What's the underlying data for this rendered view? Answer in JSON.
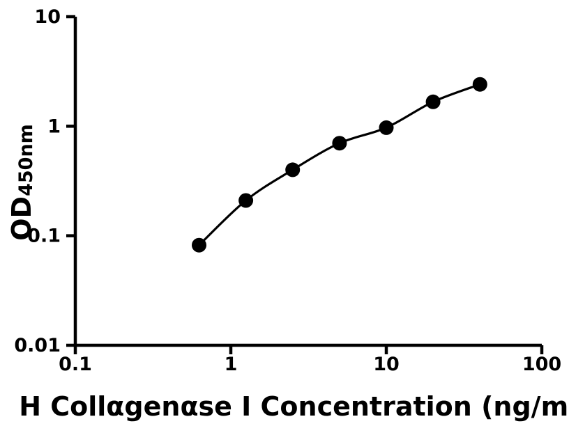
{
  "figure": {
    "background": "#ffffff",
    "foreground": "#000000"
  },
  "chart_data": {
    "type": "scatter",
    "subtype": "log-log standard curve with connecting fit line",
    "title": "",
    "xlabel": "H Collαgenαse I Concentration (ng/mL)",
    "ylabel_main": "OD",
    "ylabel_sub": "450nm",
    "xscale": "log",
    "yscale": "log",
    "xlim": [
      0.1,
      100
    ],
    "ylim": [
      0.01,
      10
    ],
    "x_ticks": [
      {
        "value": 0.1,
        "label": "0.1"
      },
      {
        "value": 1,
        "label": "1"
      },
      {
        "value": 10,
        "label": "10"
      },
      {
        "value": 100,
        "label": "100"
      }
    ],
    "y_ticks": [
      {
        "value": 0.01,
        "label": "0.01"
      },
      {
        "value": 0.1,
        "label": "0.1"
      },
      {
        "value": 1,
        "label": "1"
      },
      {
        "value": 10,
        "label": "10"
      }
    ],
    "grid": false,
    "legend": null,
    "series": [
      {
        "name": "standard-curve",
        "marker": "filled-circle",
        "marker_color": "#000000",
        "line_color": "#000000",
        "points": [
          {
            "x": 0.625,
            "y": 0.082
          },
          {
            "x": 1.25,
            "y": 0.21
          },
          {
            "x": 2.5,
            "y": 0.4
          },
          {
            "x": 5,
            "y": 0.7
          },
          {
            "x": 10,
            "y": 0.97
          },
          {
            "x": 20,
            "y": 1.67
          },
          {
            "x": 40,
            "y": 2.41
          }
        ]
      }
    ]
  }
}
